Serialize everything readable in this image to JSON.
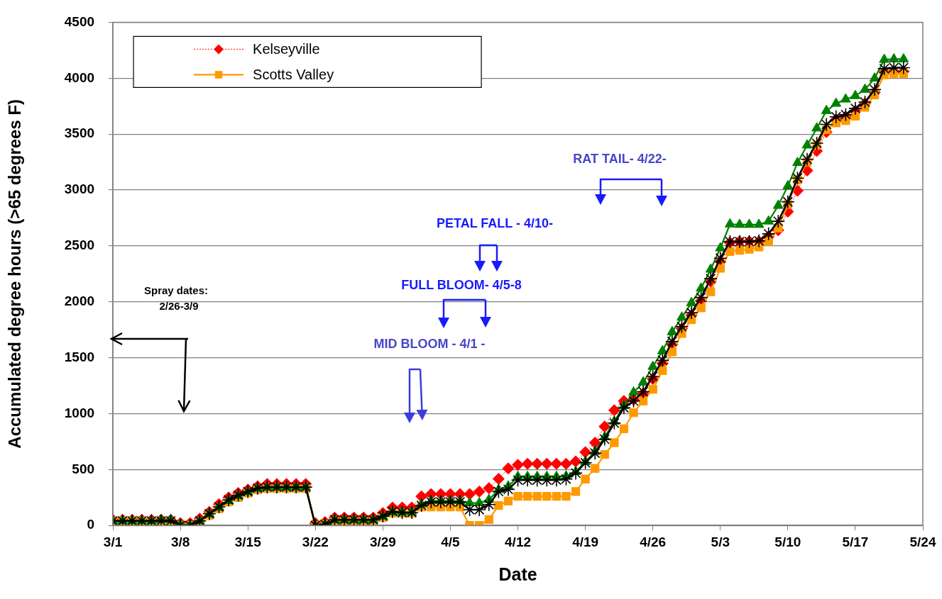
{
  "chart_data": {
    "type": "line",
    "xlabel": "Date",
    "ylabel": "Accumulated degree hours (>65 degrees F)",
    "x": [
      "--03-01",
      "--03-02",
      "--03-03",
      "--03-04",
      "--03-05",
      "--03-06",
      "--03-07",
      "--03-08",
      "--03-09",
      "--03-10",
      "--03-11",
      "--03-12",
      "--03-13",
      "--03-14",
      "--03-15",
      "--03-16",
      "--03-17",
      "--03-18",
      "--03-19",
      "--03-20",
      "--03-21",
      "--03-22",
      "--03-23",
      "--03-24",
      "--03-25",
      "--03-26",
      "--03-27",
      "--03-28",
      "--03-29",
      "--03-30",
      "--03-31",
      "--04-01",
      "--04-02",
      "--04-03",
      "--04-04",
      "--04-05",
      "--04-06",
      "--04-07",
      "--04-08",
      "--04-09",
      "--04-10",
      "--04-11",
      "--04-12",
      "--04-13",
      "--04-14",
      "--04-15",
      "--04-16",
      "--04-17",
      "--04-18",
      "--04-19",
      "--04-20",
      "--04-21",
      "--04-22",
      "--04-23",
      "--04-24",
      "--04-25",
      "--04-26",
      "--04-27",
      "--04-28",
      "--04-29",
      "--04-30",
      "--05-01",
      "--05-02",
      "--05-03",
      "--05-04",
      "--05-05",
      "--05-06",
      "--05-07",
      "--05-08",
      "--05-09",
      "--05-10",
      "--05-11",
      "--05-12",
      "--05-13",
      "--05-14",
      "--05-15",
      "--05-16",
      "--05-17",
      "--05-18",
      "--05-19",
      "--05-20",
      "--05-21",
      "--05-22"
    ],
    "series": [
      {
        "name": "Kelseyville",
        "color": "#ff0000",
        "marker": "diamond",
        "line_style": "dotted",
        "values": [
          50,
          50,
          50,
          50,
          50,
          50,
          50,
          20,
          20,
          60,
          120,
          190,
          250,
          290,
          320,
          350,
          370,
          370,
          370,
          370,
          370,
          20,
          30,
          70,
          70,
          70,
          70,
          70,
          110,
          160,
          160,
          160,
          260,
          280,
          280,
          280,
          280,
          280,
          303,
          333,
          416,
          510,
          541,
          551,
          551,
          551,
          551,
          551,
          572,
          655,
          740,
          884,
          1030,
          1113,
          1125,
          1180,
          1310,
          1450,
          1620,
          1760,
          1880,
          2010,
          2180,
          2360,
          2530,
          2540,
          2540,
          2540,
          2585,
          2640,
          2806,
          2993,
          3174,
          3349,
          3518,
          3630,
          3655,
          3708,
          3773,
          3873,
          4054,
          4060,
          4060
        ]
      },
      {
        "name": "Scotts Valley",
        "color": "#ff9900",
        "marker": "square",
        "line_style": "solid",
        "values": [
          40,
          40,
          40,
          40,
          30,
          10,
          10,
          0,
          0,
          30,
          90,
          150,
          210,
          250,
          290,
          320,
          330,
          330,
          330,
          330,
          330,
          0,
          10,
          40,
          40,
          40,
          40,
          40,
          70,
          110,
          110,
          110,
          165,
          165,
          165,
          165,
          165,
          0,
          0,
          53,
          178,
          218,
          260,
          260,
          260,
          260,
          260,
          260,
          303,
          415,
          510,
          634,
          740,
          865,
          1008,
          1113,
          1217,
          1385,
          1552,
          1717,
          1840,
          1946,
          2090,
          2300,
          2450,
          2460,
          2470,
          2490,
          2540,
          2660,
          2870,
          3090,
          3250,
          3400,
          3540,
          3600,
          3620,
          3660,
          3740,
          3850,
          4030,
          4040,
          4040
        ]
      },
      {
        "color": "#008000",
        "marker": "triangle",
        "line_style": "solid",
        "values": [
          40,
          40,
          40,
          40,
          40,
          50,
          50,
          10,
          0,
          40,
          100,
          160,
          220,
          265,
          300,
          330,
          340,
          340,
          340,
          340,
          340,
          0,
          10,
          50,
          50,
          50,
          50,
          50,
          80,
          120,
          120,
          120,
          190,
          220,
          220,
          220,
          220,
          200,
          200,
          230,
          320,
          350,
          436,
          436,
          436,
          436,
          436,
          440,
          480,
          570,
          660,
          790,
          930,
          1070,
          1190,
          1280,
          1420,
          1560,
          1730,
          1860,
          1990,
          2120,
          2290,
          2480,
          2694,
          2690,
          2690,
          2690,
          2720,
          2860,
          3035,
          3243,
          3400,
          3552,
          3708,
          3773,
          3811,
          3842,
          3898,
          3998,
          4166,
          4170,
          4170
        ]
      },
      {
        "color": "#000000",
        "marker": "cross",
        "line_style": "solid",
        "values": [
          40,
          40,
          40,
          40,
          40,
          40,
          40,
          0,
          0,
          40,
          104,
          166,
          228,
          270,
          302,
          333,
          343,
          343,
          343,
          343,
          343,
          0,
          10,
          50,
          50,
          50,
          50,
          50,
          83,
          124,
          114,
          115,
          178,
          210,
          210,
          210,
          210,
          141,
          141,
          187,
          303,
          322,
          405,
          405,
          405,
          405,
          405,
          415,
          468,
          561,
          646,
          771,
          915,
          1052,
          1113,
          1196,
          1333,
          1477,
          1645,
          1778,
          1903,
          2039,
          2207,
          2390,
          2538,
          2538,
          2538,
          2545,
          2608,
          2720,
          2894,
          3106,
          3274,
          3418,
          3586,
          3655,
          3674,
          3730,
          3786,
          3898,
          4085,
          4094,
          4094
        ]
      }
    ],
    "xlim": [
      "--03-01",
      "--05-24"
    ],
    "xticks": [
      {
        "value": "--03-01",
        "label": "3/1"
      },
      {
        "value": "--03-08",
        "label": "3/8"
      },
      {
        "value": "--03-15",
        "label": "3/15"
      },
      {
        "value": "--03-22",
        "label": "3/22"
      },
      {
        "value": "--03-29",
        "label": "3/29"
      },
      {
        "value": "--04-05",
        "label": "4/5"
      },
      {
        "value": "--04-12",
        "label": "4/12"
      },
      {
        "value": "--04-19",
        "label": "4/19"
      },
      {
        "value": "--04-26",
        "label": "4/26"
      },
      {
        "value": "--05-03",
        "label": "5/3"
      },
      {
        "value": "--05-10",
        "label": "5/10"
      },
      {
        "value": "--05-17",
        "label": "5/17"
      },
      {
        "value": "--05-24",
        "label": "5/24"
      }
    ],
    "ylim": [
      0,
      4500
    ],
    "yticks": [
      0,
      500,
      1000,
      1500,
      2000,
      2500,
      3000,
      3500,
      4000,
      4500
    ],
    "grid": "y",
    "legend": "top left",
    "annotations": [
      "Spray dates:\n2/26-3/9",
      "MID BLOOM - 4/1 -",
      "FULL BLOOM- 4/5-8",
      "PETAL FALL - 4/10-",
      "RAT TAIL- 4/22-"
    ]
  }
}
